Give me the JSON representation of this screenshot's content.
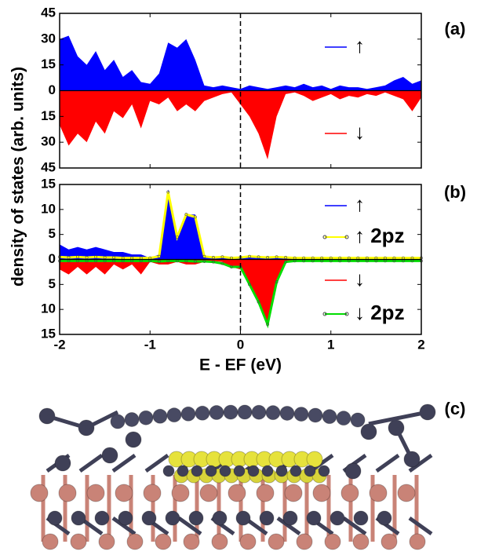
{
  "ylabel": "density of states (arb. units)",
  "panel_c_label": "(c)",
  "chart_data": [
    {
      "type": "area",
      "panel_label": "(a)",
      "vline": 0,
      "x": [
        -2.0,
        -1.9,
        -1.8,
        -1.7,
        -1.6,
        -1.5,
        -1.4,
        -1.3,
        -1.2,
        -1.1,
        -1.0,
        -0.9,
        -0.8,
        -0.7,
        -0.6,
        -0.5,
        -0.4,
        -0.3,
        -0.2,
        -0.1,
        0.0,
        0.1,
        0.2,
        0.3,
        0.4,
        0.5,
        0.6,
        0.7,
        0.8,
        0.9,
        1.0,
        1.1,
        1.2,
        1.3,
        1.4,
        1.5,
        1.6,
        1.7,
        1.8,
        1.9,
        2.0
      ],
      "xlim": [
        -2,
        2
      ],
      "ylim": [
        -45,
        45
      ],
      "yticks": [
        {
          "value": -45,
          "label": "45"
        },
        {
          "value": -30,
          "label": "30"
        },
        {
          "value": -15,
          "label": "15"
        },
        0,
        15,
        30,
        45
      ],
      "series": [
        {
          "name": "↑",
          "color": "#0000ff",
          "fill": true,
          "values": [
            30,
            32,
            20,
            15,
            23,
            12,
            18,
            8,
            12,
            5,
            4,
            10,
            28,
            25,
            30,
            18,
            3,
            2,
            3,
            2,
            1,
            3,
            2,
            1,
            2,
            3,
            2,
            4,
            2,
            3,
            1,
            3,
            2,
            2,
            1,
            2,
            3,
            6,
            8,
            4,
            6
          ]
        },
        {
          "name": "↓",
          "color": "#ff0000",
          "fill": true,
          "values": [
            -20,
            -32,
            -25,
            -30,
            -18,
            -25,
            -12,
            -16,
            -8,
            -22,
            -6,
            -8,
            -4,
            -12,
            -8,
            -12,
            -6,
            -4,
            -2,
            -1,
            -8,
            -15,
            -25,
            -40,
            -15,
            -2,
            -1,
            -3,
            -6,
            -4,
            -2,
            -5,
            -3,
            -4,
            -2,
            -3,
            -1,
            -3,
            -5,
            -12,
            -4
          ]
        }
      ]
    },
    {
      "type": "area",
      "panel_label": "(b)",
      "vline": 0,
      "xlabel": "E - EF (eV)",
      "x": [
        -2.0,
        -1.9,
        -1.8,
        -1.7,
        -1.6,
        -1.5,
        -1.4,
        -1.3,
        -1.2,
        -1.1,
        -1.0,
        -0.9,
        -0.8,
        -0.7,
        -0.6,
        -0.5,
        -0.4,
        -0.3,
        -0.2,
        -0.1,
        0.0,
        0.1,
        0.2,
        0.3,
        0.4,
        0.5,
        0.6,
        0.7,
        0.8,
        0.9,
        1.0,
        1.1,
        1.2,
        1.3,
        1.4,
        1.5,
        1.6,
        1.7,
        1.8,
        1.9,
        2.0
      ],
      "xlim": [
        -2,
        2
      ],
      "xticks": [
        -2,
        -1,
        0,
        1,
        2
      ],
      "ylim": [
        -15,
        15
      ],
      "yticks": [
        {
          "value": -15,
          "label": "15"
        },
        {
          "value": -10,
          "label": "10"
        },
        {
          "value": -5,
          "label": "5"
        },
        0,
        5,
        10,
        15
      ],
      "series": [
        {
          "name": "↑",
          "color": "#0000ff",
          "fill": true,
          "values": [
            3,
            2,
            2.5,
            2,
            2.5,
            2,
            1.5,
            1.5,
            1,
            1,
            0.3,
            1,
            14,
            5,
            9,
            9,
            0.5,
            0.2,
            0.3,
            0.2,
            0.2,
            0.4,
            0.3,
            0.2,
            0.3,
            0.2,
            0.3,
            0.2,
            0.3,
            0.2,
            0.2,
            0.3,
            0.2,
            0.2,
            0.3,
            0.2,
            0.2,
            0.3,
            0.2,
            0.2,
            0.3
          ]
        },
        {
          "name": "↑ 2pz",
          "color": "#ffff00",
          "fill": false,
          "values": [
            0.5,
            0.4,
            0.5,
            0.4,
            0.5,
            0.4,
            0.4,
            0.3,
            0.3,
            0.3,
            0.3,
            0.6,
            13.5,
            4.5,
            9,
            8.5,
            0.6,
            0.4,
            0.5,
            0.3,
            0.4,
            0.6,
            0.5,
            0.4,
            0.5,
            0.4,
            0.3,
            0.3,
            0.3,
            0.3,
            0.3,
            0.3,
            0.3,
            0.3,
            0.3,
            0.3,
            0.3,
            0.3,
            0.3,
            0.3,
            0.3
          ]
        },
        {
          "name": "↓",
          "color": "#ff0000",
          "fill": true,
          "values": [
            -2,
            -3,
            -1.5,
            -3,
            -1.5,
            -3,
            -1,
            -2,
            -1,
            -3,
            -0.5,
            -1,
            -1,
            -0.5,
            -1,
            -1,
            -0.5,
            -0.3,
            -0.5,
            -1.5,
            -2,
            -5,
            -9,
            -13,
            -5,
            -0.5,
            -0.2,
            -0.2,
            -0.2,
            -0.2,
            -0.2,
            -0.2,
            -0.2,
            -0.2,
            -0.2,
            -0.2,
            -0.2,
            -0.2,
            -0.2,
            -0.2,
            -0.2
          ]
        },
        {
          "name": "↓ 2pz",
          "color": "#00dd00",
          "fill": false,
          "values": [
            -0.3,
            -0.3,
            -0.3,
            -0.3,
            -0.3,
            -0.3,
            -0.3,
            -0.3,
            -0.3,
            -0.3,
            -0.3,
            -0.4,
            -0.3,
            -0.3,
            -0.3,
            -0.4,
            -0.4,
            -0.5,
            -0.8,
            -1.5,
            -1.5,
            -5,
            -8.5,
            -13,
            -4.5,
            -0.5,
            -0.3,
            -0.3,
            -0.3,
            -0.3,
            -0.3,
            -0.3,
            -0.3,
            -0.3,
            -0.3,
            -0.3,
            -0.3,
            -0.3,
            -0.3,
            -0.3,
            -0.3
          ]
        }
      ]
    }
  ]
}
